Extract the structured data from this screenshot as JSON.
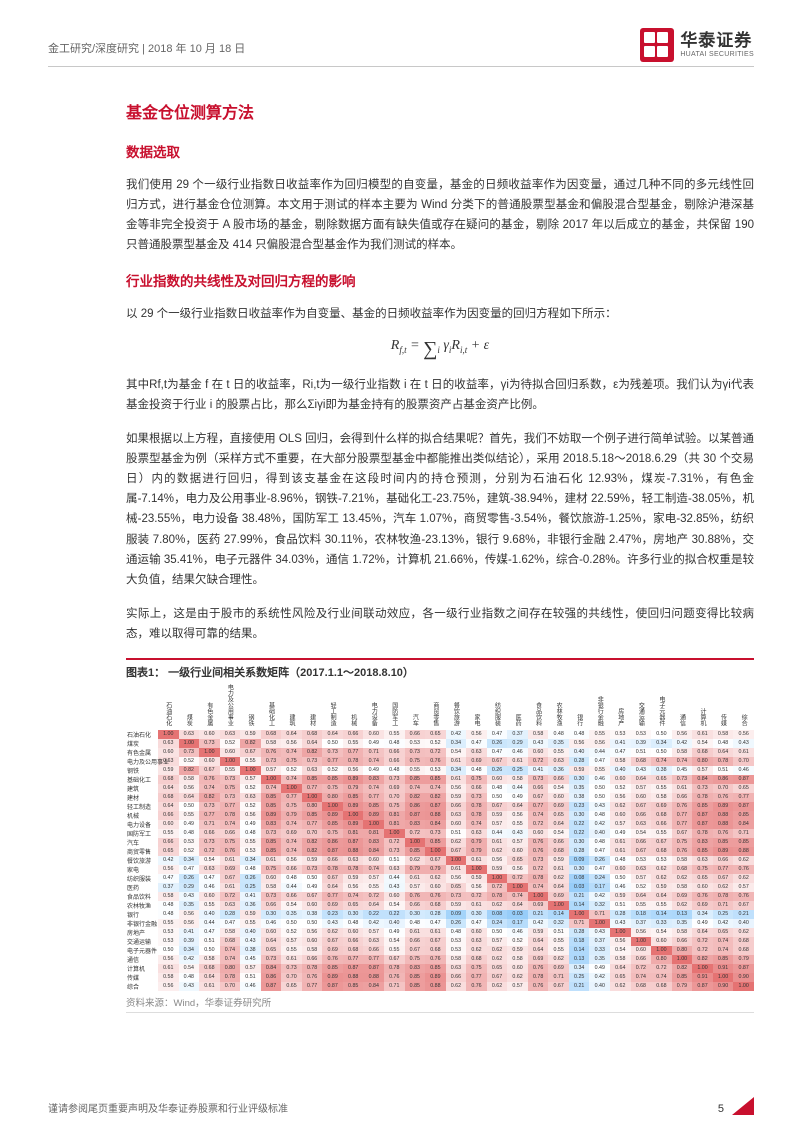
{
  "header": {
    "breadcrumb": "金工研究/深度研究 | 2018 年 10 月 18 日",
    "company_cn": "华泰证券",
    "company_en": "HUATAI SECURITIES"
  },
  "h1": "基金仓位测算方法",
  "section1": {
    "title": "数据选取",
    "para": "我们使用 29 个一级行业指数日收益率作为回归模型的自变量，基金的日频收益率作为因变量，通过几种不同的多元线性回归方式，进行基金仓位测算。本文用于测试的样本主要为 Wind 分类下的普通股票型基金和偏股混合型基金，剔除沪港深基金等非完全投资于 A 股市场的基金，剔除数据方面有缺失值或存在疑问的基金，剔除 2017 年以后成立的基金，共保留 190 只普通股票型基金及 414 只偏股混合型基金作为我们测试的样本。"
  },
  "section2": {
    "title": "行业指数的共线性及对回归方程的影响",
    "para1": "以 29 个一级行业指数日收益率作为自变量、基金的日频收益率作为因变量的回归方程如下所示：",
    "formula_lhs": "R",
    "formula_sub1": "f,t",
    "formula_eq": " = ",
    "formula_sum_sub": "i",
    "formula_gamma": "γ",
    "formula_gamma_sub": "i",
    "formula_r2": "R",
    "formula_r2_sub": "i,t",
    "formula_plus": " + ε",
    "para2": "其中Rf,t为基金 f 在 t 日的收益率，Ri,t为一级行业指数 i 在 t 日的收益率，γi为待拟合回归系数，ε为残差项。我们认为γi代表基金投资于行业 i 的股票占比，那么Σiγi即为基金持有的股票资产占基金资产比例。",
    "para3": "如果根据以上方程，直接使用 OLS 回归，会得到什么样的拟合结果呢？首先，我们不妨取一个例子进行简单试验。以某普通股票型基金为例（采样方式不重要，在大部分股票型基金中都能推出类似结论），采用 2018.5.18～2018.6.29（共 30 个交易日）内的数据进行回归，得到该支基金在这段时间内的持仓预测，分别为石油石化 12.93%，煤炭-7.31%，有色金属-7.14%，电力及公用事业-8.96%，钢铁-7.21%，基础化工-23.75%，建筑-38.94%，建材 22.59%，轻工制造-38.05%，机械-23.55%，电力设备 38.48%，国防军工 13.45%，汽车 1.07%，商贸零售-3.54%，餐饮旅游-1.25%，家电-32.85%，纺织服装 7.80%，医药 27.99%，食品饮料 30.11%，农林牧渔-23.13%，银行 9.68%，非银行金融 2.47%，房地产 30.88%，交通运输 35.41%，电子元器件 34.03%，通信 1.72%，计算机 21.66%，传媒-1.62%，综合-0.28%。许多行业的拟合权重是较大负值，结果欠缺合理性。",
    "para4": "实际上，这是由于股市的系统性风险及行业间联动效应，各一级行业指数之间存在较强的共线性，使回归问题变得比较病态，难以取得可靠的结果。"
  },
  "chart": {
    "title": "图表1：  一级行业间相关系数矩阵（2017.1.1～2018.8.10）",
    "source": "资料来源：Wind，华泰证券研究所",
    "industries": [
      "石油石化",
      "煤炭",
      "有色金属",
      "电力及公用事业",
      "钢铁",
      "基础化工",
      "建筑",
      "建材",
      "轻工制造",
      "机械",
      "电力设备",
      "国防军工",
      "汽车",
      "商贸零售",
      "餐饮旅游",
      "家电",
      "纺织服装",
      "医药",
      "食品饮料",
      "农林牧渔",
      "银行",
      "非银行金融",
      "房地产",
      "交通运输",
      "电子元器件",
      "通信",
      "计算机",
      "传媒",
      "综合"
    ],
    "col_headers": [
      "石油石化",
      "煤炭",
      "有色金属",
      "电力及公用事业",
      "钢铁",
      "基础化工",
      "建筑",
      "建材",
      "轻工制造",
      "机械",
      "电力设备",
      "国防军工",
      "汽车",
      "商贸零售",
      "餐饮旅游",
      "家电",
      "纺织服装",
      "医药",
      "食品饮料",
      "农林牧渔",
      "银行",
      "非银行金融",
      "房地产",
      "交通运输",
      "电子元器件",
      "通信",
      "计算机",
      "传媒",
      "综合"
    ],
    "matrix": [
      [
        1.0,
        0.63,
        0.6,
        0.63,
        0.59,
        0.68,
        0.64,
        0.68,
        0.64,
        0.66,
        0.6,
        0.55,
        0.66,
        0.65,
        0.42,
        0.56,
        0.47,
        0.37,
        0.58,
        0.48,
        0.48,
        0.55,
        0.53,
        0.53,
        0.5,
        0.56,
        0.61,
        0.58,
        0.56
      ],
      [
        0.63,
        1.0,
        0.73,
        0.52,
        0.82,
        0.58,
        0.56,
        0.64,
        0.5,
        0.55,
        0.49,
        0.48,
        0.53,
        0.52,
        0.34,
        0.47,
        0.26,
        0.29,
        0.43,
        0.35,
        0.56,
        0.56,
        0.41,
        0.39,
        0.34,
        0.42,
        0.54,
        0.48,
        0.43
      ],
      [
        0.6,
        0.73,
        1.0,
        0.6,
        0.67,
        0.76,
        0.74,
        0.82,
        0.73,
        0.77,
        0.71,
        0.66,
        0.73,
        0.72,
        0.54,
        0.63,
        0.47,
        0.46,
        0.6,
        0.55,
        0.4,
        0.44,
        0.47,
        0.51,
        0.5,
        0.58,
        0.68,
        0.64,
        0.61
      ],
      [
        0.63,
        0.52,
        0.6,
        1.0,
        0.55,
        0.73,
        0.75,
        0.73,
        0.77,
        0.78,
        0.74,
        0.66,
        0.75,
        0.76,
        0.61,
        0.69,
        0.67,
        0.61,
        0.72,
        0.63,
        0.28,
        0.47,
        0.58,
        0.68,
        0.74,
        0.74,
        0.8,
        0.78,
        0.7
      ],
      [
        0.59,
        0.82,
        0.67,
        0.55,
        1.0,
        0.57,
        0.52,
        0.63,
        0.52,
        0.56,
        0.49,
        0.48,
        0.55,
        0.53,
        0.34,
        0.48,
        0.26,
        0.25,
        0.41,
        0.36,
        0.59,
        0.55,
        0.4,
        0.43,
        0.38,
        0.45,
        0.57,
        0.51,
        0.46
      ],
      [
        0.68,
        0.58,
        0.76,
        0.73,
        0.57,
        1.0,
        0.74,
        0.85,
        0.85,
        0.89,
        0.83,
        0.73,
        0.85,
        0.85,
        0.61,
        0.75,
        0.6,
        0.58,
        0.73,
        0.66,
        0.3,
        0.46,
        0.6,
        0.64,
        0.65,
        0.73,
        0.84,
        0.86,
        0.87
      ],
      [
        0.64,
        0.56,
        0.74,
        0.75,
        0.52,
        0.74,
        1.0,
        0.77,
        0.75,
        0.79,
        0.74,
        0.69,
        0.74,
        0.74,
        0.56,
        0.66,
        0.48,
        0.44,
        0.66,
        0.54,
        0.35,
        0.5,
        0.52,
        0.57,
        0.55,
        0.61,
        0.73,
        0.7,
        0.65
      ],
      [
        0.68,
        0.64,
        0.82,
        0.73,
        0.63,
        0.85,
        0.77,
        1.0,
        0.8,
        0.85,
        0.77,
        0.7,
        0.82,
        0.82,
        0.59,
        0.73,
        0.5,
        0.49,
        0.67,
        0.6,
        0.38,
        0.5,
        0.56,
        0.6,
        0.58,
        0.66,
        0.78,
        0.76,
        0.77
      ],
      [
        0.64,
        0.5,
        0.73,
        0.77,
        0.52,
        0.85,
        0.75,
        0.8,
        1.0,
        0.89,
        0.85,
        0.75,
        0.86,
        0.87,
        0.66,
        0.78,
        0.67,
        0.64,
        0.77,
        0.69,
        0.23,
        0.43,
        0.62,
        0.67,
        0.69,
        0.76,
        0.85,
        0.89,
        0.87
      ],
      [
        0.66,
        0.55,
        0.77,
        0.78,
        0.56,
        0.89,
        0.79,
        0.85,
        0.89,
        1.0,
        0.89,
        0.81,
        0.87,
        0.88,
        0.63,
        0.78,
        0.59,
        0.56,
        0.74,
        0.65,
        0.3,
        0.48,
        0.6,
        0.66,
        0.68,
        0.77,
        0.87,
        0.88,
        0.85
      ],
      [
        0.6,
        0.49,
        0.71,
        0.74,
        0.49,
        0.83,
        0.74,
        0.77,
        0.85,
        0.89,
        1.0,
        0.81,
        0.83,
        0.84,
        0.6,
        0.74,
        0.57,
        0.55,
        0.72,
        0.64,
        0.22,
        0.42,
        0.57,
        0.63,
        0.66,
        0.77,
        0.87,
        0.88,
        0.84
      ],
      [
        0.55,
        0.48,
        0.66,
        0.66,
        0.48,
        0.73,
        0.69,
        0.7,
        0.75,
        0.81,
        0.81,
        1.0,
        0.72,
        0.73,
        0.51,
        0.63,
        0.44,
        0.43,
        0.6,
        0.54,
        0.22,
        0.4,
        0.49,
        0.54,
        0.55,
        0.67,
        0.78,
        0.76,
        0.71
      ],
      [
        0.66,
        0.53,
        0.73,
        0.75,
        0.55,
        0.85,
        0.74,
        0.82,
        0.86,
        0.87,
        0.83,
        0.72,
        1.0,
        0.85,
        0.62,
        0.79,
        0.61,
        0.57,
        0.76,
        0.66,
        0.3,
        0.48,
        0.61,
        0.66,
        0.67,
        0.75,
        0.83,
        0.85,
        0.85
      ],
      [
        0.65,
        0.52,
        0.72,
        0.76,
        0.53,
        0.85,
        0.74,
        0.82,
        0.87,
        0.88,
        0.84,
        0.73,
        0.85,
        1.0,
        0.67,
        0.79,
        0.62,
        0.6,
        0.76,
        0.68,
        0.28,
        0.47,
        0.61,
        0.67,
        0.68,
        0.76,
        0.85,
        0.89,
        0.88
      ],
      [
        0.42,
        0.34,
        0.54,
        0.61,
        0.34,
        0.61,
        0.56,
        0.59,
        0.66,
        0.63,
        0.6,
        0.51,
        0.62,
        0.67,
        1.0,
        0.61,
        0.56,
        0.65,
        0.73,
        0.59,
        0.09,
        0.26,
        0.48,
        0.53,
        0.53,
        0.58,
        0.63,
        0.66,
        0.62
      ],
      [
        0.56,
        0.47,
        0.63,
        0.69,
        0.48,
        0.75,
        0.66,
        0.73,
        0.78,
        0.78,
        0.74,
        0.63,
        0.79,
        0.79,
        0.61,
        1.0,
        0.59,
        0.56,
        0.72,
        0.61,
        0.3,
        0.47,
        0.6,
        0.63,
        0.62,
        0.68,
        0.75,
        0.77,
        0.76
      ],
      [
        0.47,
        0.26,
        0.47,
        0.67,
        0.26,
        0.6,
        0.48,
        0.5,
        0.67,
        0.59,
        0.57,
        0.44,
        0.61,
        0.62,
        0.56,
        0.59,
        1.0,
        0.72,
        0.78,
        0.62,
        0.08,
        0.24,
        0.5,
        0.57,
        0.62,
        0.62,
        0.65,
        0.67,
        0.62
      ],
      [
        0.37,
        0.29,
        0.46,
        0.61,
        0.25,
        0.58,
        0.44,
        0.49,
        0.64,
        0.56,
        0.55,
        0.43,
        0.57,
        0.6,
        0.65,
        0.56,
        0.72,
        1.0,
        0.74,
        0.64,
        0.03,
        0.17,
        0.46,
        0.52,
        0.59,
        0.58,
        0.6,
        0.62,
        0.57
      ],
      [
        0.58,
        0.43,
        0.6,
        0.72,
        0.41,
        0.73,
        0.66,
        0.67,
        0.77,
        0.74,
        0.72,
        0.6,
        0.76,
        0.76,
        0.73,
        0.72,
        0.78,
        0.74,
        1.0,
        0.69,
        0.21,
        0.42,
        0.59,
        0.64,
        0.64,
        0.69,
        0.76,
        0.78,
        0.76
      ],
      [
        0.48,
        0.35,
        0.55,
        0.63,
        0.36,
        0.66,
        0.54,
        0.6,
        0.69,
        0.65,
        0.64,
        0.54,
        0.66,
        0.68,
        0.59,
        0.61,
        0.62,
        0.64,
        0.69,
        1.0,
        0.14,
        0.32,
        0.51,
        0.55,
        0.55,
        0.62,
        0.69,
        0.71,
        0.67
      ],
      [
        0.48,
        0.56,
        0.4,
        0.28,
        0.59,
        0.3,
        0.35,
        0.38,
        0.23,
        0.3,
        0.22,
        0.22,
        0.3,
        0.28,
        0.09,
        0.3,
        0.08,
        0.03,
        0.21,
        0.14,
        1.0,
        0.71,
        0.28,
        0.18,
        0.14,
        0.13,
        0.34,
        0.25,
        0.21
      ],
      [
        0.55,
        0.56,
        0.44,
        0.47,
        0.55,
        0.46,
        0.5,
        0.5,
        0.43,
        0.48,
        0.42,
        0.4,
        0.48,
        0.47,
        0.26,
        0.47,
        0.24,
        0.17,
        0.42,
        0.32,
        0.71,
        1.0,
        0.43,
        0.37,
        0.33,
        0.35,
        0.49,
        0.42,
        0.4
      ],
      [
        0.53,
        0.41,
        0.47,
        0.58,
        0.4,
        0.6,
        0.52,
        0.56,
        0.62,
        0.6,
        0.57,
        0.49,
        0.61,
        0.61,
        0.48,
        0.6,
        0.5,
        0.46,
        0.59,
        0.51,
        0.28,
        0.43,
        1.0,
        0.56,
        0.54,
        0.58,
        0.64,
        0.65,
        0.62
      ],
      [
        0.53,
        0.39,
        0.51,
        0.68,
        0.43,
        0.64,
        0.57,
        0.6,
        0.67,
        0.66,
        0.63,
        0.54,
        0.66,
        0.67,
        0.53,
        0.63,
        0.57,
        0.52,
        0.64,
        0.55,
        0.18,
        0.37,
        0.56,
        1.0,
        0.6,
        0.66,
        0.72,
        0.74,
        0.68
      ],
      [
        0.5,
        0.34,
        0.5,
        0.74,
        0.38,
        0.65,
        0.55,
        0.58,
        0.69,
        0.68,
        0.66,
        0.55,
        0.67,
        0.68,
        0.53,
        0.62,
        0.62,
        0.59,
        0.64,
        0.55,
        0.14,
        0.33,
        0.54,
        0.6,
        1.0,
        0.8,
        0.72,
        0.74,
        0.68
      ],
      [
        0.56,
        0.42,
        0.58,
        0.74,
        0.45,
        0.73,
        0.61,
        0.66,
        0.76,
        0.77,
        0.77,
        0.67,
        0.75,
        0.76,
        0.58,
        0.68,
        0.62,
        0.58,
        0.69,
        0.62,
        0.13,
        0.35,
        0.58,
        0.66,
        0.8,
        1.0,
        0.82,
        0.85,
        0.79
      ],
      [
        0.61,
        0.54,
        0.68,
        0.8,
        0.57,
        0.84,
        0.73,
        0.78,
        0.85,
        0.87,
        0.87,
        0.78,
        0.83,
        0.85,
        0.63,
        0.75,
        0.65,
        0.6,
        0.76,
        0.69,
        0.34,
        0.49,
        0.64,
        0.72,
        0.72,
        0.82,
        1.0,
        0.91,
        0.87
      ],
      [
        0.58,
        0.48,
        0.64,
        0.78,
        0.51,
        0.86,
        0.7,
        0.76,
        0.89,
        0.88,
        0.88,
        0.76,
        0.85,
        0.89,
        0.66,
        0.77,
        0.67,
        0.62,
        0.78,
        0.71,
        0.25,
        0.42,
        0.65,
        0.74,
        0.74,
        0.85,
        0.91,
        1.0,
        0.9
      ],
      [
        0.56,
        0.43,
        0.61,
        0.7,
        0.46,
        0.87,
        0.65,
        0.77,
        0.87,
        0.85,
        0.84,
        0.71,
        0.85,
        0.88,
        0.62,
        0.76,
        0.62,
        0.57,
        0.76,
        0.67,
        0.21,
        0.4,
        0.62,
        0.68,
        0.68,
        0.79,
        0.87,
        0.9,
        1.0
      ]
    ],
    "color_high": "#e57373",
    "color_mid": "#ffffff",
    "color_low": "#90caf9"
  },
  "footer": {
    "disclaimer": "谨请参阅尾页重要声明及华泰证券股票和行业评级标准",
    "page": "5"
  }
}
